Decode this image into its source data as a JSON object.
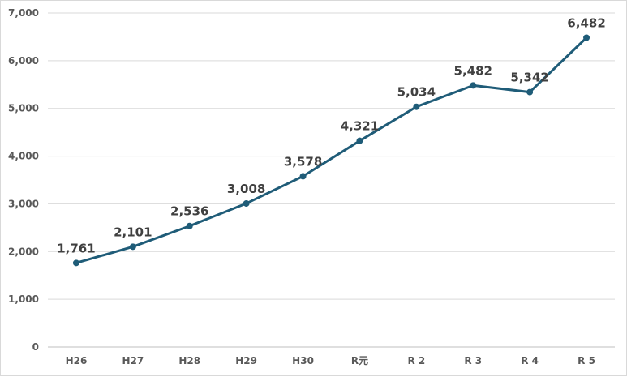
{
  "chart_data": {
    "type": "line",
    "title": "",
    "xlabel": "",
    "ylabel": "",
    "categories": [
      "H26",
      "H27",
      "H28",
      "H29",
      "H30",
      "R元",
      "R 2",
      "R 3",
      "R 4",
      "R 5"
    ],
    "series": [
      {
        "values": [
          1761,
          2101,
          2536,
          3008,
          3578,
          4321,
          5034,
          5482,
          5342,
          6482
        ],
        "data_labels": [
          "1,761",
          "2,101",
          "2,536",
          "3,008",
          "3,578",
          "4,321",
          "5,034",
          "5,482",
          "5,342",
          "6,482"
        ],
        "color": "#1f5c78"
      }
    ],
    "ylim": [
      0,
      7000
    ],
    "yticks": [
      0,
      1000,
      2000,
      3000,
      4000,
      5000,
      6000,
      7000
    ],
    "ytick_labels": [
      "0",
      "1,000",
      "2,000",
      "3,000",
      "4,000",
      "5,000",
      "6,000",
      "7,000"
    ],
    "grid": true,
    "legend": "none",
    "gridColor": "#d9d9d9",
    "axisColor": "#bfbfbf"
  }
}
